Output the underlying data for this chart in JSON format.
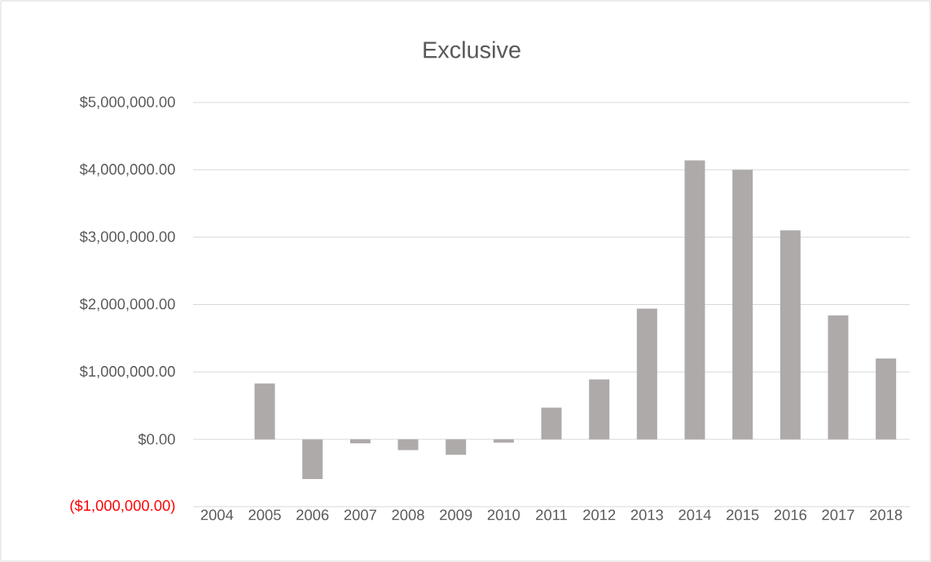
{
  "chart_data": {
    "type": "bar",
    "title": "Exclusive",
    "categories": [
      "2004",
      "2005",
      "2006",
      "2007",
      "2008",
      "2009",
      "2010",
      "2011",
      "2012",
      "2013",
      "2014",
      "2015",
      "2016",
      "2017",
      "2018"
    ],
    "values": [
      0,
      830000,
      -590000,
      -60000,
      -160000,
      -230000,
      -50000,
      470000,
      890000,
      1940000,
      4140000,
      4000000,
      3100000,
      1840000,
      1200000
    ],
    "color": "#aeaaaa",
    "ylim": [
      -1000000,
      5000000
    ],
    "yticks": [
      {
        "value": -1000000,
        "label": "($1,000,000.00)"
      },
      {
        "value": 0,
        "label": "$0.00"
      },
      {
        "value": 1000000,
        "label": "$1,000,000.00"
      },
      {
        "value": 2000000,
        "label": "$2,000,000.00"
      },
      {
        "value": 3000000,
        "label": "$3,000,000.00"
      },
      {
        "value": 4000000,
        "label": "$4,000,000.00"
      },
      {
        "value": 5000000,
        "label": "$5,000,000.00"
      }
    ],
    "grid": "y"
  }
}
